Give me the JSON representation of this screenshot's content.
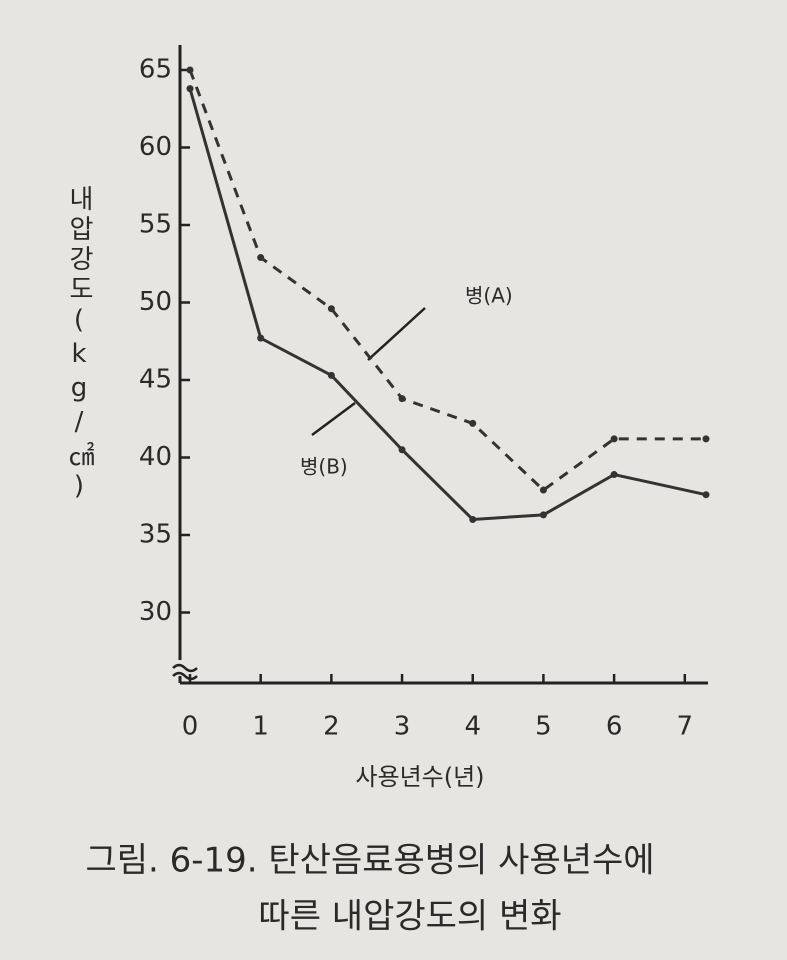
{
  "chart_data": {
    "type": "line",
    "ylabel": "내압강도(kg/㎠)",
    "xlabel": "사용년수(년)",
    "caption": [
      "그림. 6-19. 탄산음료용병의 사용년수에",
      "따른 내압강도의 변화"
    ],
    "x": [
      0,
      1,
      2,
      3,
      4,
      5,
      6,
      7.3
    ],
    "series": [
      {
        "name": "병(A)",
        "color": "#333333",
        "dashed": true,
        "values": [
          65,
          52.9,
          49.6,
          43.8,
          42.2,
          37.9,
          41.2,
          41.2
        ]
      },
      {
        "name": "병(B)",
        "color": "#333333",
        "dashed": false,
        "values": [
          63.8,
          47.7,
          45.3,
          40.5,
          36,
          36.3,
          38.9,
          37.6
        ]
      }
    ],
    "xlim": [
      0,
      7.3
    ],
    "xticks": [
      0,
      1,
      2,
      3,
      4,
      5,
      6,
      7
    ],
    "ylim": [
      25,
      65
    ],
    "yticks": [
      30,
      35,
      40,
      45,
      50,
      55,
      60,
      65
    ]
  }
}
